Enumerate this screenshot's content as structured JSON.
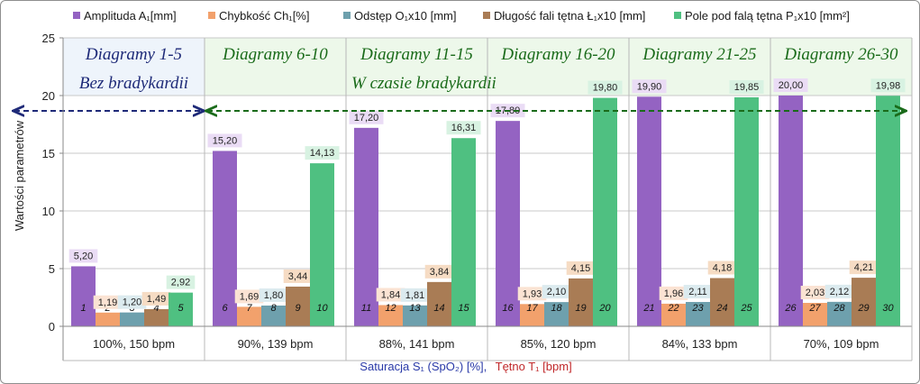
{
  "chart_data": {
    "type": "bar",
    "categories": [
      "100%, 150 bpm",
      "90%, 139 bpm",
      "88%, 141 bpm",
      "85%, 120 bpm",
      "84%, 133 bpm",
      "70%, 109 bpm"
    ],
    "series": [
      {
        "name": "Amplituda A₁[mm]",
        "color": "#9463c2",
        "labelBg": "#eadcf5",
        "values": [
          5.2,
          15.2,
          17.2,
          17.8,
          19.9,
          20.0
        ],
        "labels": [
          "5,20",
          "15,20",
          "17,20",
          "17,80",
          "19,90",
          "20,00"
        ],
        "numbers": [
          "1",
          "6",
          "11",
          "16",
          "21",
          "26"
        ]
      },
      {
        "name": "Chybkość Ch₁[%]",
        "color": "#f2a16c",
        "labelBg": "#fbe3d3",
        "values": [
          1.19,
          1.69,
          1.84,
          1.93,
          1.96,
          2.03
        ],
        "labels": [
          "1,19",
          "1,69",
          "1,84",
          "1,93",
          "1,96",
          "2,03"
        ],
        "numbers": [
          "2",
          "7",
          "12",
          "17",
          "22",
          "27"
        ]
      },
      {
        "name": "Odstęp O₁x10 [mm]",
        "color": "#6ea0ad",
        "labelBg": "#dcebef",
        "values": [
          1.2,
          1.8,
          1.81,
          2.1,
          2.11,
          2.12
        ],
        "labels": [
          "1,20",
          "1,80",
          "1,81",
          "2,10",
          "2,11",
          "2,12"
        ],
        "numbers": [
          "3",
          "8",
          "13",
          "18",
          "23",
          "28"
        ]
      },
      {
        "name": "Długość fali tętna Ł₁x10 [mm]",
        "color": "#a97c55",
        "labelBg": "#f6dcc4",
        "values": [
          1.49,
          3.44,
          3.84,
          4.15,
          4.18,
          4.21
        ],
        "labels": [
          "1,49",
          "3,44",
          "3,84",
          "4,15",
          "4,18",
          "4,21"
        ],
        "numbers": [
          "4",
          "9",
          "14",
          "19",
          "24",
          "29"
        ]
      },
      {
        "name": "Pole pod falą tętna P₁x10 [mm²]",
        "color": "#4fc081",
        "labelBg": "#d8f2e2",
        "values": [
          2.92,
          14.13,
          16.31,
          19.8,
          19.85,
          19.98
        ],
        "labels": [
          "2,92",
          "14,13",
          "16,31",
          "19,80",
          "19,85",
          "19,98"
        ],
        "numbers": [
          "5",
          "10",
          "15",
          "20",
          "25",
          "30"
        ]
      }
    ],
    "ylabel": "Wartości parametrów",
    "ylim": [
      0,
      25
    ],
    "yticks": [
      0,
      5,
      10,
      15,
      20,
      25
    ],
    "xlabel_part1": "Saturacja S₁ (SpO₂) [%],",
    "xlabel_part2": "Tętno T₁ [bpm]",
    "xlabel_color1": "#2a3aa8",
    "xlabel_color2": "#c0282a",
    "group_titles": [
      "Diagramy 1-5",
      "Diagramy 6-10",
      "Diagramy 11-15",
      "Diagramy 16-20",
      "Diagramy 21-25",
      "Diagramy 26-30"
    ],
    "group_title_colors": [
      "#1e2a78",
      "#1a6b1a",
      "#1a6b1a",
      "#1a6b1a",
      "#1a6b1a",
      "#1a6b1a"
    ],
    "annotation_1": "Bez bradykardii",
    "annotation_1_color": "#1e2a78",
    "annotation_2": "W czasie bradykardii",
    "annotation_2_color": "#1a6b1a",
    "grid": true,
    "legend_position": "top"
  }
}
